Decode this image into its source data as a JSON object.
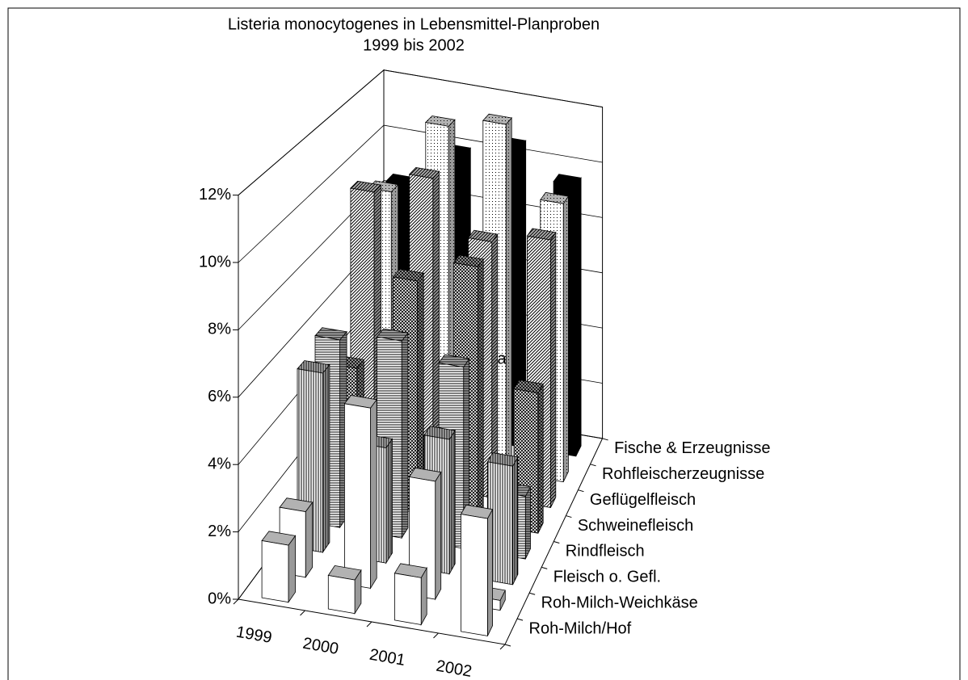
{
  "chart_data": {
    "type": "bar3d",
    "title": "Listeria monocytogenes in Lebensmittel-Planproben",
    "subtitle": "1999 bis 2002",
    "categories": [
      "1999",
      "2000",
      "2001",
      "2002"
    ],
    "series": [
      {
        "name": "Roh-Milch/Hof",
        "pattern": "white",
        "values": [
          1.7,
          1.0,
          1.4,
          3.5
        ]
      },
      {
        "name": "Roh-Milch-Weichkäse",
        "pattern": "white",
        "values": [
          2.0,
          5.5,
          3.6,
          0.3
        ]
      },
      {
        "name": "Fleisch o. Gefl.",
        "pattern": "vlines",
        "values": [
          5.6,
          3.6,
          4.2,
          3.7
        ]
      },
      {
        "name": "Rindfleisch",
        "pattern": "hlines",
        "values": [
          6.0,
          6.3,
          5.8,
          2.0
        ]
      },
      {
        "name": "Schweinefleisch",
        "pattern": "check",
        "values": [
          4.4,
          7.6,
          8.4,
          4.6
        ]
      },
      {
        "name": "Geflügelfleisch",
        "pattern": "diag",
        "values": [
          9.6,
          10.4,
          8.6,
          9.0
        ]
      },
      {
        "name": "Rohfleischerzeugnisse",
        "pattern": "dots",
        "values": [
          9.0,
          11.6,
          12.0,
          9.6
        ]
      },
      {
        "name": "Fische & Erzeugnisse",
        "pattern": "black",
        "values": [
          8.6,
          10.0,
          10.6,
          9.6
        ]
      }
    ],
    "annotation": "a",
    "ylim": [
      0,
      12
    ],
    "yticks": [
      {
        "value": 0,
        "label": "0%"
      },
      {
        "value": 2,
        "label": "2%"
      },
      {
        "value": 4,
        "label": "4%"
      },
      {
        "value": 6,
        "label": "6%"
      },
      {
        "value": 8,
        "label": "8%"
      },
      {
        "value": 10,
        "label": "10%"
      },
      {
        "value": 12,
        "label": "12%"
      }
    ],
    "grid": true
  }
}
